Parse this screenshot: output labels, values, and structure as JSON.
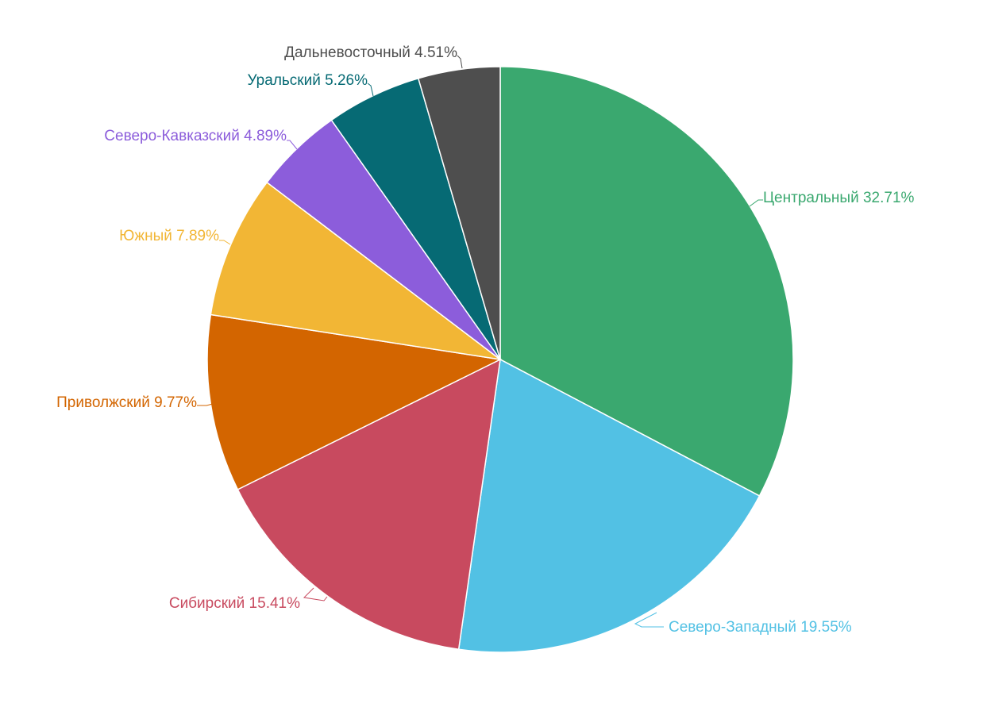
{
  "chart_data": {
    "type": "pie",
    "start_angle_deg": 0,
    "direction": "clockwise",
    "label_format": "{name} {value}%",
    "slices": [
      {
        "name": "Центральный",
        "value": 32.71,
        "value_label": "32.71%",
        "color": "#3aa86f"
      },
      {
        "name": "Северо-Западный",
        "value": 19.55,
        "value_label": "19.55%",
        "color": "#52c1e4"
      },
      {
        "name": "Сибирский",
        "value": 15.41,
        "value_label": "15.41%",
        "color": "#c84a5f"
      },
      {
        "name": "Приволжский",
        "value": 9.77,
        "value_label": "9.77%",
        "color": "#d36500"
      },
      {
        "name": "Южный",
        "value": 7.89,
        "value_label": "7.89%",
        "color": "#f2b635"
      },
      {
        "name": "Северо-Кавказский",
        "value": 4.89,
        "value_label": "4.89%",
        "color": "#8c5ddb"
      },
      {
        "name": "Уральский",
        "value": 5.26,
        "value_label": "5.26%",
        "color": "#066a74"
      },
      {
        "name": "Дальневосточный",
        "value": 4.51,
        "value_label": "4.51%",
        "color": "#4e4e4e"
      }
    ]
  }
}
